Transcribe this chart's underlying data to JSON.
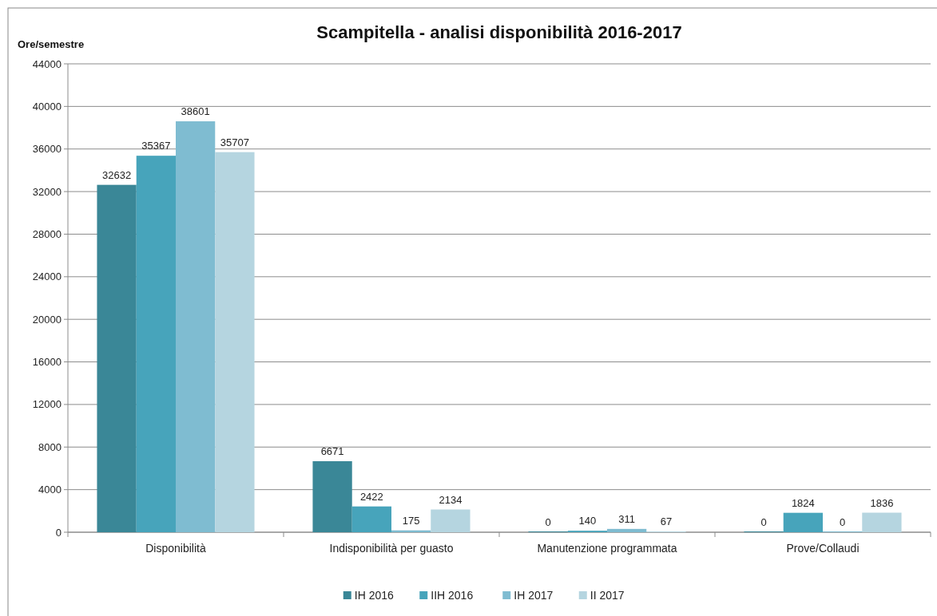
{
  "chart_data": {
    "type": "bar",
    "title": "Scampitella - analisi disponibilità 2016-2017",
    "ylabel": "Ore/semestre",
    "categories": [
      "Disponibilità",
      "Indisponibilità per guasto",
      "Manutenzione programmata",
      "Prove/Collaudi"
    ],
    "series": [
      {
        "name": "IH 2016",
        "color": "#3a8797",
        "values": [
          32632,
          6671,
          0,
          0
        ]
      },
      {
        "name": "IIH 2016",
        "color": "#47a4bb",
        "values": [
          35367,
          2422,
          140,
          1824
        ]
      },
      {
        "name": "IH 2017",
        "color": "#7fbcd1",
        "values": [
          38601,
          175,
          311,
          0
        ]
      },
      {
        "name": "II 2017",
        "color": "#b5d5e0",
        "values": [
          35707,
          2134,
          67,
          1836
        ]
      }
    ],
    "ylim": [
      0,
      44000
    ],
    "yticks": [
      0,
      4000,
      8000,
      12000,
      16000,
      20000,
      24000,
      28000,
      32000,
      36000,
      40000,
      44000
    ],
    "grid": "y",
    "legend": "bottom",
    "data_labels": true
  }
}
